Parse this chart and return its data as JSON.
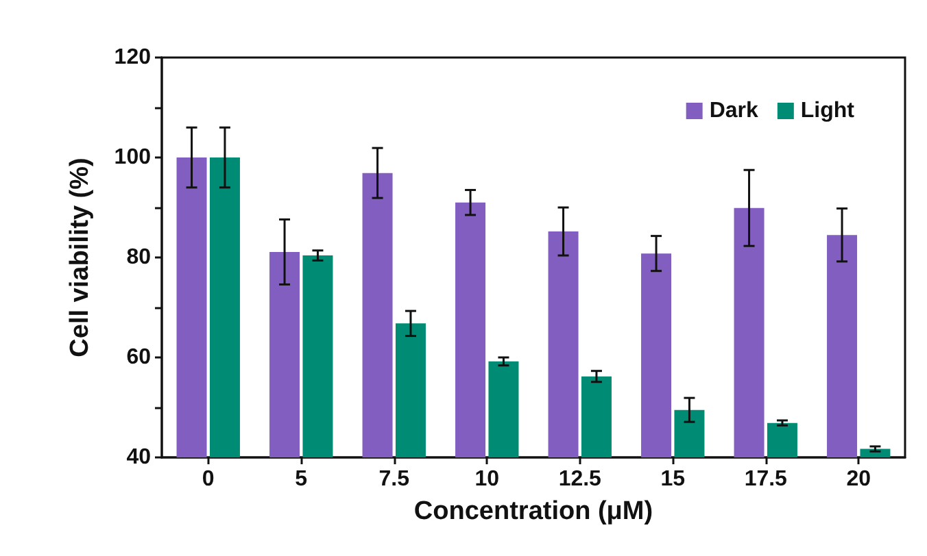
{
  "chart_data": {
    "type": "bar",
    "xlabel": "Concentration (μM)",
    "ylabel": "Cell viability (%)",
    "categories": [
      "0",
      "5",
      "7.5",
      "10",
      "12.5",
      "15",
      "17.5",
      "20"
    ],
    "series": [
      {
        "name": "Dark",
        "color": "#825ec0",
        "values": [
          100,
          81.1,
          96.9,
          91,
          85.2,
          80.8,
          89.9,
          84.5
        ],
        "errors": [
          6,
          6.5,
          5,
          2.5,
          4.8,
          3.5,
          7.6,
          5.3
        ]
      },
      {
        "name": "Light",
        "color": "#008c74",
        "values": [
          100,
          80.4,
          66.8,
          59.2,
          56.2,
          49.5,
          46.9,
          41.7
        ],
        "errors": [
          6,
          1,
          2.5,
          0.8,
          1.1,
          2.4,
          0.5,
          0.5
        ]
      }
    ],
    "ylim": [
      40,
      120
    ],
    "yticks": [
      40,
      {
        "value": 50,
        "label": null
      },
      60,
      {
        "value": 70,
        "label": null
      },
      80,
      {
        "value": 90,
        "label": null
      },
      100,
      {
        "value": 110,
        "label": null
      },
      120
    ],
    "grid": false,
    "legend": "top right"
  }
}
